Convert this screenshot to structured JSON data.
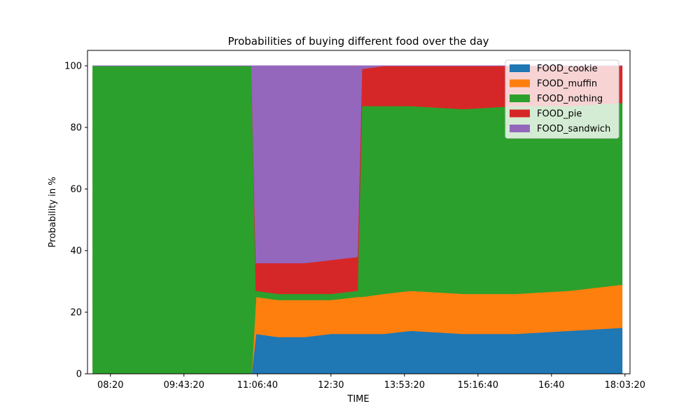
{
  "chart_data": {
    "type": "area",
    "stacked": true,
    "title": "Probabilities of buying different food over the day",
    "xlabel": "TIME",
    "ylabel": "Probability in %",
    "xlim": [
      "07:54",
      "18:09"
    ],
    "ylim": [
      0,
      105
    ],
    "yticks": [
      0,
      20,
      40,
      60,
      80,
      100
    ],
    "xticks": [
      "08:20",
      "09:43:20",
      "11:06:40",
      "12:30",
      "13:53:20",
      "15:16:40",
      "16:40",
      "18:03:20"
    ],
    "grid": false,
    "legend_position": "top-right",
    "x": [
      "08:00",
      "11:00",
      "11:05",
      "11:30",
      "12:00",
      "12:30",
      "13:00",
      "13:05",
      "13:30",
      "14:00",
      "15:00",
      "16:00",
      "17:00",
      "18:00"
    ],
    "series": [
      {
        "name": "FOOD_cookie",
        "color": "#1f77b4",
        "values": [
          0,
          0,
          13,
          12,
          12,
          13,
          13,
          13,
          13,
          14,
          13,
          13,
          14,
          15
        ]
      },
      {
        "name": "FOOD_muffin",
        "color": "#ff7f0e",
        "values": [
          0,
          0,
          12,
          12,
          12,
          11,
          12,
          12,
          13,
          13,
          13,
          13,
          13,
          14
        ]
      },
      {
        "name": "FOOD_nothing",
        "color": "#2ca02c",
        "values": [
          100,
          100,
          2,
          2,
          2,
          2,
          2,
          62,
          61,
          60,
          60,
          61,
          60,
          59
        ]
      },
      {
        "name": "FOOD_pie",
        "color": "#d62728",
        "values": [
          0,
          0,
          9,
          10,
          10,
          11,
          11,
          12,
          13,
          13,
          14,
          13,
          13,
          12
        ]
      },
      {
        "name": "FOOD_sandwich",
        "color": "#9467bd",
        "values": [
          0,
          0,
          64,
          64,
          64,
          63,
          62,
          1,
          0,
          0,
          0,
          0,
          0,
          0
        ]
      }
    ]
  }
}
